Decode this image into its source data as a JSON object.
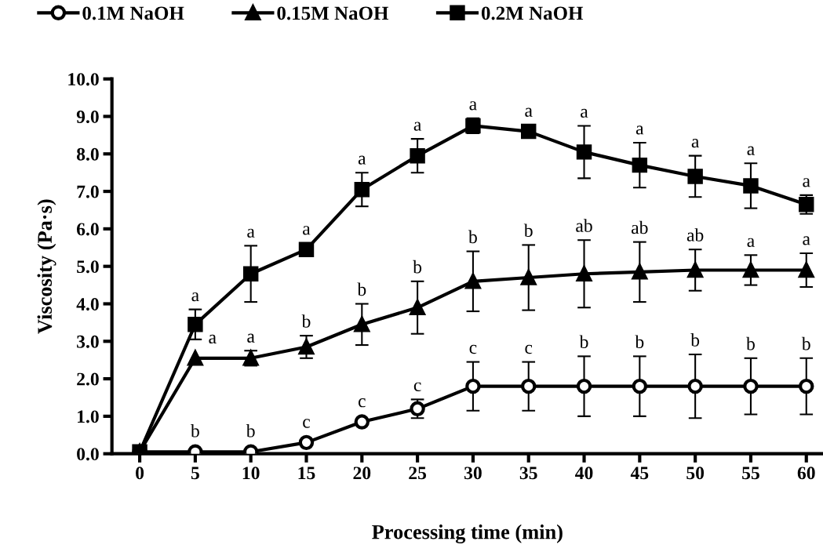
{
  "chart_data": {
    "type": "line",
    "xlabel": "Processing time (min)",
    "ylabel": "Viscosity (Pa·s)",
    "categories": [
      "0",
      "5",
      "10",
      "15",
      "20",
      "25",
      "30",
      "35",
      "40",
      "45",
      "50",
      "55",
      "60"
    ],
    "series": [
      {
        "name": "0.1M NaOH",
        "color": "#000000",
        "marker": "circle",
        "values": [
          0.05,
          0.05,
          0.05,
          0.3,
          0.85,
          1.2,
          1.8,
          1.8,
          1.8,
          1.8,
          1.8,
          1.8,
          1.8
        ],
        "errors": [
          null,
          null,
          null,
          null,
          null,
          0.25,
          0.65,
          0.65,
          0.8,
          0.8,
          0.85,
          0.75,
          0.75
        ]
      },
      {
        "name": "0.15M NaOH",
        "color": "#000000",
        "marker": "triangle",
        "values": [
          0.05,
          2.55,
          2.55,
          2.85,
          3.45,
          3.9,
          4.6,
          4.7,
          4.8,
          4.85,
          4.9,
          4.9,
          4.9
        ],
        "errors": [
          null,
          null,
          0.2,
          0.3,
          0.55,
          0.7,
          0.8,
          0.87,
          0.9,
          0.8,
          0.55,
          0.4,
          0.45
        ]
      },
      {
        "name": "0.2M NaOH",
        "color": "#000000",
        "marker": "square",
        "values": [
          0.05,
          3.45,
          4.8,
          5.45,
          7.05,
          7.95,
          8.75,
          8.6,
          8.05,
          7.7,
          7.4,
          7.15,
          6.65
        ],
        "errors": [
          null,
          0.4,
          0.75,
          null,
          0.45,
          0.45,
          0.2,
          null,
          0.7,
          0.6,
          0.55,
          0.6,
          0.25
        ]
      }
    ],
    "ylim": [
      0,
      10
    ],
    "yticks": [
      {
        "value": 0,
        "label": "0.0"
      },
      {
        "value": 1,
        "label": "1.0"
      },
      {
        "value": 2,
        "label": "2.0"
      },
      {
        "value": 3,
        "label": "3.0"
      },
      {
        "value": 4,
        "label": "4.0"
      },
      {
        "value": 5,
        "label": "5.0"
      },
      {
        "value": 6,
        "label": "6.0"
      },
      {
        "value": 7,
        "label": "7.0"
      },
      {
        "value": 8,
        "label": "8.0"
      },
      {
        "value": 9,
        "label": "9.0"
      },
      {
        "value": 10,
        "label": "10.0"
      }
    ],
    "grid": false,
    "legend": "top",
    "line_style": "solid",
    "annotations": [
      {
        "text": "b",
        "x": "5",
        "y": 0.05
      },
      {
        "text": "b",
        "x": "10",
        "y": 0.05
      },
      {
        "text": "c",
        "x": "15",
        "y": 0.3
      },
      {
        "text": "c",
        "x": "20",
        "y": 0.85
      },
      {
        "text": "c",
        "x": "25",
        "y": 1.2
      },
      {
        "text": "c",
        "x": "30",
        "y": 1.8
      },
      {
        "text": "c",
        "x": "35",
        "y": 1.8
      },
      {
        "text": "b",
        "x": "40",
        "y": 1.8
      },
      {
        "text": "b",
        "x": "45",
        "y": 1.8
      },
      {
        "text": "b",
        "x": "50",
        "y": 1.8
      },
      {
        "text": "b",
        "x": "55",
        "y": 1.8
      },
      {
        "text": "b",
        "x": "60",
        "y": 1.8
      },
      {
        "text": "a",
        "x": "5",
        "y": 2.55
      },
      {
        "text": "a",
        "x": "10",
        "y": 2.55
      },
      {
        "text": "b",
        "x": "15",
        "y": 2.85
      },
      {
        "text": "b",
        "x": "20",
        "y": 3.45
      },
      {
        "text": "b",
        "x": "25",
        "y": 3.9
      },
      {
        "text": "b",
        "x": "30",
        "y": 4.6
      },
      {
        "text": "b",
        "x": "35",
        "y": 4.7
      },
      {
        "text": "ab",
        "x": "40",
        "y": 4.8
      },
      {
        "text": "ab",
        "x": "45",
        "y": 4.85
      },
      {
        "text": "ab",
        "x": "50",
        "y": 4.9
      },
      {
        "text": "a",
        "x": "55",
        "y": 4.9
      },
      {
        "text": "a",
        "x": "60",
        "y": 4.9
      },
      {
        "text": "a",
        "x": "5",
        "y": 3.45
      },
      {
        "text": "a",
        "x": "10",
        "y": 4.8
      },
      {
        "text": "a",
        "x": "15",
        "y": 5.45
      },
      {
        "text": "a",
        "x": "20",
        "y": 7.05
      },
      {
        "text": "a",
        "x": "25",
        "y": 7.95
      },
      {
        "text": "a",
        "x": "30",
        "y": 8.75
      },
      {
        "text": "a",
        "x": "35",
        "y": 8.6
      },
      {
        "text": "a",
        "x": "40",
        "y": 8.05
      },
      {
        "text": "a",
        "x": "45",
        "y": 7.7
      },
      {
        "text": "a",
        "x": "50",
        "y": 7.4
      },
      {
        "text": "a",
        "x": "55",
        "y": 7.15
      },
      {
        "text": "a",
        "x": "60",
        "y": 6.65
      }
    ]
  }
}
